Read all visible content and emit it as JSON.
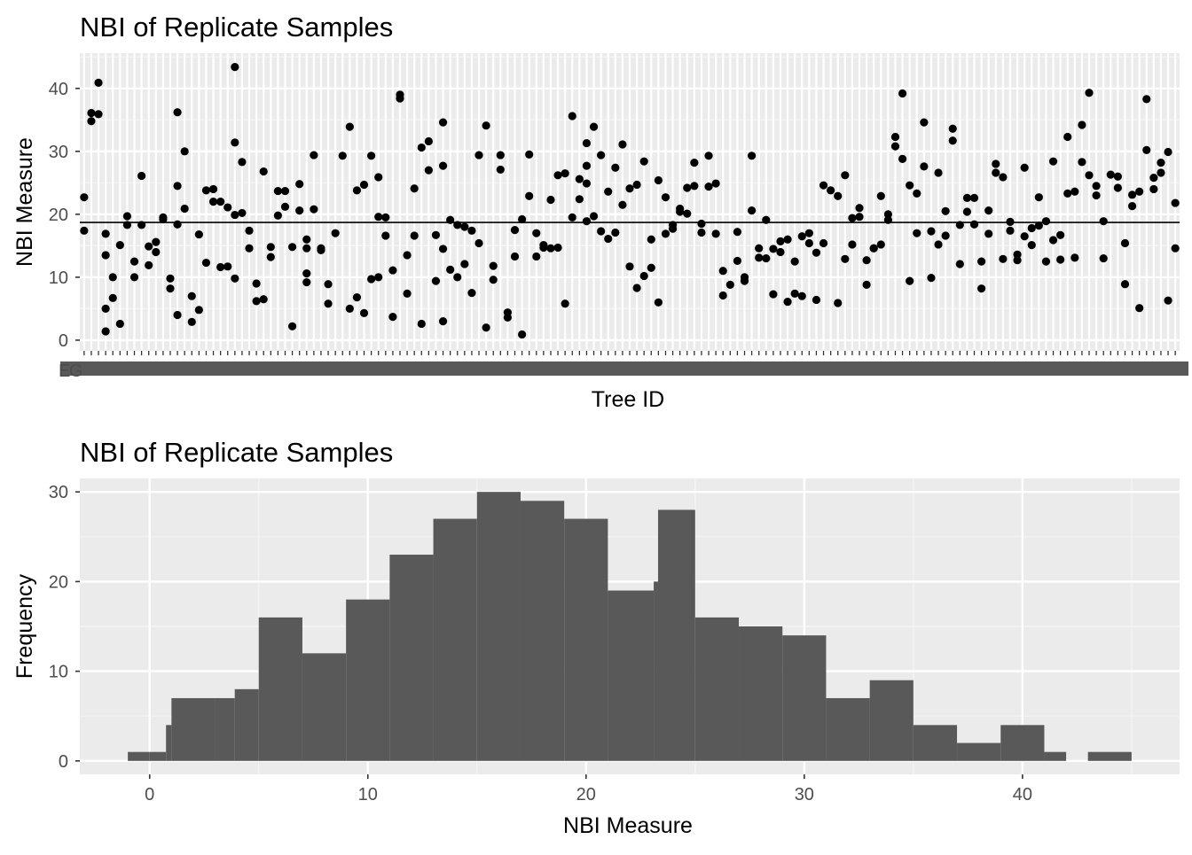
{
  "chart_data": [
    {
      "type": "scatter",
      "title": "NBI of Replicate Samples",
      "xlabel": "Tree ID",
      "ylabel": "NBI Measure",
      "ylim": [
        -1.7,
        45.6
      ],
      "yticks": [
        0,
        10,
        20,
        30,
        40
      ],
      "x_tick_labels_note": "ticks overlap and are illegible",
      "x_tick_label_fragments": [
        "E",
        "G"
      ],
      "hline": 18.7,
      "grid": true,
      "points": [
        [
          1,
          22.7
        ],
        [
          1,
          17.4
        ],
        [
          2,
          34.8
        ],
        [
          2,
          36.1
        ],
        [
          3,
          35.9
        ],
        [
          3,
          40.9
        ],
        [
          4,
          16.9
        ],
        [
          4,
          13.5
        ],
        [
          4,
          5.0
        ],
        [
          4,
          1.4
        ],
        [
          5,
          10.0
        ],
        [
          5,
          6.7
        ],
        [
          6,
          2.6
        ],
        [
          6,
          15.1
        ],
        [
          7,
          19.7
        ],
        [
          7,
          18.3
        ],
        [
          8,
          12.5
        ],
        [
          8,
          10.0
        ],
        [
          9,
          26.1
        ],
        [
          9,
          18.3
        ],
        [
          10,
          11.9
        ],
        [
          10,
          14.9
        ],
        [
          11,
          14.0
        ],
        [
          11,
          15.6
        ],
        [
          12,
          19.5
        ],
        [
          12,
          19.2
        ],
        [
          13,
          9.8
        ],
        [
          13,
          8.2
        ],
        [
          14,
          36.2
        ],
        [
          14,
          24.5
        ],
        [
          14,
          18.4
        ],
        [
          14,
          4.0
        ],
        [
          15,
          30.0
        ],
        [
          15,
          20.9
        ],
        [
          16,
          7.0
        ],
        [
          16,
          2.9
        ],
        [
          17,
          4.8
        ],
        [
          17,
          16.8
        ],
        [
          18,
          12.3
        ],
        [
          18,
          23.8
        ],
        [
          19,
          24.0
        ],
        [
          19,
          22.0
        ],
        [
          20,
          22.0
        ],
        [
          20,
          11.6
        ],
        [
          21,
          21.1
        ],
        [
          21,
          11.7
        ],
        [
          22,
          43.4
        ],
        [
          22,
          31.4
        ],
        [
          22,
          19.9
        ],
        [
          22,
          9.8
        ],
        [
          23,
          28.3
        ],
        [
          23,
          20.2
        ],
        [
          24,
          17.4
        ],
        [
          24,
          14.6
        ],
        [
          25,
          9.0
        ],
        [
          25,
          6.2
        ],
        [
          26,
          26.8
        ],
        [
          26,
          6.5
        ],
        [
          27,
          14.8
        ],
        [
          27,
          13.2
        ],
        [
          28,
          23.7
        ],
        [
          28,
          19.8
        ],
        [
          29,
          23.7
        ],
        [
          29,
          21.2
        ],
        [
          30,
          14.8
        ],
        [
          30,
          2.2
        ],
        [
          31,
          24.8
        ],
        [
          31,
          20.6
        ],
        [
          32,
          16.0
        ],
        [
          32,
          14.6
        ],
        [
          32,
          10.6
        ],
        [
          32,
          9.2
        ],
        [
          33,
          29.4
        ],
        [
          33,
          20.8
        ],
        [
          34,
          14.6
        ],
        [
          34,
          14.3
        ],
        [
          35,
          8.9
        ],
        [
          35,
          5.8
        ],
        [
          36,
          17.0
        ],
        [
          37,
          29.3
        ],
        [
          38,
          33.9
        ],
        [
          38,
          5.0
        ],
        [
          39,
          23.8
        ],
        [
          39,
          6.8
        ],
        [
          40,
          24.7
        ],
        [
          40,
          4.3
        ],
        [
          41,
          29.3
        ],
        [
          41,
          9.7
        ],
        [
          42,
          25.9
        ],
        [
          42,
          19.6
        ],
        [
          42,
          10.0
        ],
        [
          43,
          19.5
        ],
        [
          43,
          16.6
        ],
        [
          44,
          11.1
        ],
        [
          44,
          3.7
        ],
        [
          45,
          39.0
        ],
        [
          45,
          38.4
        ],
        [
          46,
          13.5
        ],
        [
          46,
          7.4
        ],
        [
          47,
          24.1
        ],
        [
          47,
          16.6
        ],
        [
          48,
          30.6
        ],
        [
          48,
          2.6
        ],
        [
          49,
          31.6
        ],
        [
          49,
          27.0
        ],
        [
          50,
          16.7
        ],
        [
          50,
          9.4
        ],
        [
          51,
          34.6
        ],
        [
          51,
          27.7
        ],
        [
          51,
          14.5
        ],
        [
          51,
          3.0
        ],
        [
          52,
          19.1
        ],
        [
          52,
          11.2
        ],
        [
          53,
          18.3
        ],
        [
          53,
          10.0
        ],
        [
          54,
          18.0
        ],
        [
          54,
          12.1
        ],
        [
          55,
          17.4
        ],
        [
          55,
          7.5
        ],
        [
          56,
          29.4
        ],
        [
          56,
          15.4
        ],
        [
          57,
          34.1
        ],
        [
          57,
          2.0
        ],
        [
          58,
          11.8
        ],
        [
          58,
          9.6
        ],
        [
          59,
          29.4
        ],
        [
          59,
          27.1
        ],
        [
          60,
          4.4
        ],
        [
          60,
          3.6
        ],
        [
          61,
          17.5
        ],
        [
          61,
          13.3
        ],
        [
          62,
          19.2
        ],
        [
          62,
          0.9
        ],
        [
          63,
          29.5
        ],
        [
          63,
          22.9
        ],
        [
          64,
          17.0
        ],
        [
          64,
          13.3
        ],
        [
          65,
          15.1
        ],
        [
          65,
          14.7
        ],
        [
          66,
          22.3
        ],
        [
          66,
          14.6
        ],
        [
          67,
          26.2
        ],
        [
          67,
          14.7
        ],
        [
          68,
          26.5
        ],
        [
          68,
          5.8
        ],
        [
          69,
          35.6
        ],
        [
          69,
          19.5
        ],
        [
          70,
          25.6
        ],
        [
          70,
          22.4
        ],
        [
          71,
          31.3
        ],
        [
          71,
          24.9
        ],
        [
          71,
          18.9
        ],
        [
          71,
          27.7
        ],
        [
          72,
          33.9
        ],
        [
          72,
          19.7
        ],
        [
          73,
          29.4
        ],
        [
          73,
          17.3
        ],
        [
          74,
          23.6
        ],
        [
          74,
          16.1
        ],
        [
          75,
          27.4
        ],
        [
          75,
          17.1
        ],
        [
          76,
          31.1
        ],
        [
          76,
          21.5
        ],
        [
          77,
          24.1
        ],
        [
          77,
          11.7
        ],
        [
          78,
          24.7
        ],
        [
          78,
          8.3
        ],
        [
          79,
          28.4
        ],
        [
          79,
          10.2
        ],
        [
          80,
          16.0
        ],
        [
          80,
          11.5
        ],
        [
          81,
          25.4
        ],
        [
          81,
          6.0
        ],
        [
          82,
          22.7
        ],
        [
          82,
          16.9
        ],
        [
          83,
          18.3
        ],
        [
          83,
          17.7
        ],
        [
          84,
          20.9
        ],
        [
          84,
          20.4
        ],
        [
          85,
          24.2
        ],
        [
          85,
          20.1
        ],
        [
          86,
          28.2
        ],
        [
          86,
          24.5
        ],
        [
          87,
          18.5
        ],
        [
          87,
          17.1
        ],
        [
          88,
          29.3
        ],
        [
          88,
          24.4
        ],
        [
          89,
          24.9
        ],
        [
          89,
          16.9
        ],
        [
          90,
          11.0
        ],
        [
          90,
          7.1
        ],
        [
          91,
          8.8
        ],
        [
          92,
          17.2
        ],
        [
          92,
          12.6
        ],
        [
          93,
          10.0
        ],
        [
          93,
          9.4
        ],
        [
          94,
          29.3
        ],
        [
          94,
          20.6
        ],
        [
          95,
          14.6
        ],
        [
          95,
          13.1
        ],
        [
          96,
          19.1
        ],
        [
          96,
          13.0
        ],
        [
          97,
          14.5
        ],
        [
          97,
          7.3
        ],
        [
          98,
          15.7
        ],
        [
          98,
          14.0
        ],
        [
          99,
          16.0
        ],
        [
          99,
          6.1
        ],
        [
          100,
          12.5
        ],
        [
          100,
          7.4
        ],
        [
          101,
          16.5
        ],
        [
          101,
          7.0
        ],
        [
          102,
          17.0
        ],
        [
          102,
          15.4
        ],
        [
          103,
          13.9
        ],
        [
          103,
          6.4
        ],
        [
          104,
          24.6
        ],
        [
          104,
          15.4
        ],
        [
          105,
          23.8
        ],
        [
          106,
          22.9
        ],
        [
          106,
          5.9
        ],
        [
          107,
          26.2
        ],
        [
          107,
          12.9
        ],
        [
          108,
          19.4
        ],
        [
          108,
          15.2
        ],
        [
          109,
          21.0
        ],
        [
          109,
          19.6
        ],
        [
          110,
          12.7
        ],
        [
          110,
          8.8
        ],
        [
          111,
          14.6
        ],
        [
          111,
          14.6
        ],
        [
          112,
          22.9
        ],
        [
          112,
          15.2
        ],
        [
          113,
          20.0
        ],
        [
          113,
          19.1
        ],
        [
          114,
          32.3
        ],
        [
          114,
          30.8
        ],
        [
          115,
          39.2
        ],
        [
          115,
          28.8
        ],
        [
          116,
          24.6
        ],
        [
          116,
          9.4
        ],
        [
          117,
          23.3
        ],
        [
          117,
          17.0
        ],
        [
          118,
          34.6
        ],
        [
          118,
          27.6
        ],
        [
          119,
          17.3
        ],
        [
          119,
          9.9
        ],
        [
          120,
          26.6
        ],
        [
          120,
          15.2
        ],
        [
          121,
          20.5
        ],
        [
          121,
          16.6
        ],
        [
          122,
          33.6
        ],
        [
          122,
          31.7
        ],
        [
          123,
          18.3
        ],
        [
          123,
          12.1
        ],
        [
          124,
          22.6
        ],
        [
          124,
          20.4
        ],
        [
          125,
          22.6
        ],
        [
          125,
          18.4
        ],
        [
          126,
          12.5
        ],
        [
          126,
          8.2
        ],
        [
          127,
          20.6
        ],
        [
          127,
          16.9
        ],
        [
          128,
          28.0
        ],
        [
          128,
          26.6
        ],
        [
          129,
          25.9
        ],
        [
          129,
          12.9
        ],
        [
          130,
          18.8
        ],
        [
          130,
          17.4
        ],
        [
          131,
          13.6
        ],
        [
          131,
          12.7
        ],
        [
          132,
          27.4
        ],
        [
          132,
          16.5
        ],
        [
          133,
          17.8
        ],
        [
          133,
          15.1
        ],
        [
          134,
          22.7
        ],
        [
          134,
          18.2
        ],
        [
          135,
          18.9
        ],
        [
          135,
          12.5
        ],
        [
          136,
          28.4
        ],
        [
          136,
          15.9
        ],
        [
          137,
          16.7
        ],
        [
          137,
          12.8
        ],
        [
          138,
          32.3
        ],
        [
          138,
          23.3
        ],
        [
          139,
          23.6
        ],
        [
          139,
          13.1
        ],
        [
          140,
          34.2
        ],
        [
          140,
          28.3
        ],
        [
          141,
          39.3
        ],
        [
          141,
          26.2
        ],
        [
          142,
          24.5
        ],
        [
          142,
          23.0
        ],
        [
          143,
          18.9
        ],
        [
          143,
          13.0
        ],
        [
          144,
          26.3
        ],
        [
          145,
          26.0
        ],
        [
          145,
          24.2
        ],
        [
          146,
          15.4
        ],
        [
          146,
          8.9
        ],
        [
          147,
          23.1
        ],
        [
          147,
          21.3
        ],
        [
          148,
          23.6
        ],
        [
          148,
          5.1
        ],
        [
          149,
          38.3
        ],
        [
          149,
          30.2
        ],
        [
          150,
          25.8
        ],
        [
          150,
          24.0
        ],
        [
          151,
          28.2
        ],
        [
          151,
          26.6
        ],
        [
          152,
          29.9
        ],
        [
          152,
          6.3
        ],
        [
          153,
          21.8
        ],
        [
          153,
          14.6
        ]
      ]
    },
    {
      "type": "bar",
      "subtype": "histogram",
      "title": "NBI of Replicate Samples",
      "xlabel": "NBI Measure",
      "ylabel": "Frequency",
      "xlim": [
        -3.2,
        47.2
      ],
      "ylim": [
        -1.5,
        31.5
      ],
      "xticks": [
        0,
        10,
        20,
        30,
        40
      ],
      "yticks": [
        0,
        10,
        20,
        30
      ],
      "grid": true,
      "bins": [
        {
          "start": -1,
          "end": 0,
          "count": 1
        },
        {
          "start": 0,
          "end": 0.75,
          "count": 1
        },
        {
          "start": 0.75,
          "end": 1,
          "count": 4
        },
        {
          "start": 1,
          "end": 3,
          "count": 7
        },
        {
          "start": 3,
          "end": 3.9,
          "count": 7
        },
        {
          "start": 3.9,
          "end": 5,
          "count": 8
        },
        {
          "start": 5,
          "end": 7,
          "count": 16
        },
        {
          "start": 7,
          "end": 9,
          "count": 12
        },
        {
          "start": 9,
          "end": 11,
          "count": 18
        },
        {
          "start": 11,
          "end": 13,
          "count": 23
        },
        {
          "start": 13,
          "end": 15,
          "count": 27
        },
        {
          "start": 15,
          "end": 17,
          "count": 30
        },
        {
          "start": 17,
          "end": 19,
          "count": 29
        },
        {
          "start": 19,
          "end": 21,
          "count": 27
        },
        {
          "start": 21,
          "end": 23.1,
          "count": 19
        },
        {
          "start": 23.1,
          "end": 23.3,
          "count": 20
        },
        {
          "start": 23.3,
          "end": 25,
          "count": 28
        },
        {
          "start": 25,
          "end": 27,
          "count": 16
        },
        {
          "start": 27,
          "end": 29,
          "count": 15
        },
        {
          "start": 29,
          "end": 31,
          "count": 14
        },
        {
          "start": 31,
          "end": 33,
          "count": 7
        },
        {
          "start": 33,
          "end": 35,
          "count": 9
        },
        {
          "start": 35,
          "end": 37,
          "count": 4
        },
        {
          "start": 37,
          "end": 39,
          "count": 2
        },
        {
          "start": 39,
          "end": 41,
          "count": 4
        },
        {
          "start": 41,
          "end": 42,
          "count": 1
        },
        {
          "start": 43,
          "end": 45,
          "count": 1
        }
      ]
    }
  ]
}
